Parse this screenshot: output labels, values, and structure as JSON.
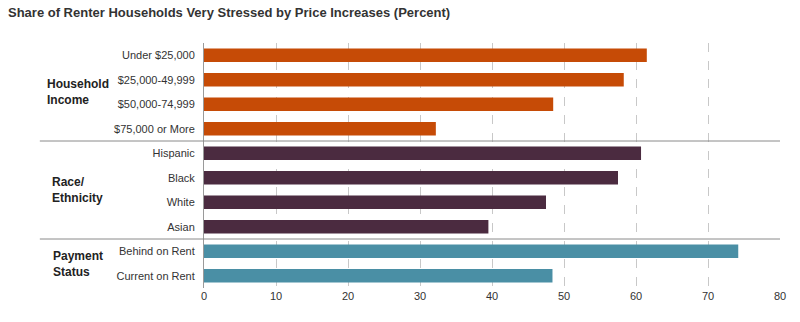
{
  "chart_data": {
    "type": "bar",
    "orientation": "horizontal",
    "title": "Share of Renter Households Very Stressed by Price Increases (Percent)",
    "groups": [
      {
        "label": "Household Income",
        "color": "#c64b06",
        "categories": [
          "Under $25,000",
          "$25,000-49,999",
          "$50,000-74,999",
          "$75,000 or More"
        ],
        "values": [
          61.5,
          58.3,
          48.5,
          32.2
        ]
      },
      {
        "label": "Race/ Ethnicity",
        "color": "#4b2b40",
        "categories": [
          "Hispanic",
          "Black",
          "White",
          "Asian"
        ],
        "values": [
          60.7,
          57.5,
          47.5,
          39.5
        ]
      },
      {
        "label": "Payment Status",
        "color": "#4a8fa5",
        "categories": [
          "Behind on Rent",
          "Current on Rent"
        ],
        "values": [
          74.2,
          48.4
        ]
      }
    ],
    "xlim": [
      0,
      80
    ],
    "xticks": [
      0,
      10,
      20,
      30,
      40,
      50,
      60,
      70,
      80
    ],
    "grid": true
  }
}
